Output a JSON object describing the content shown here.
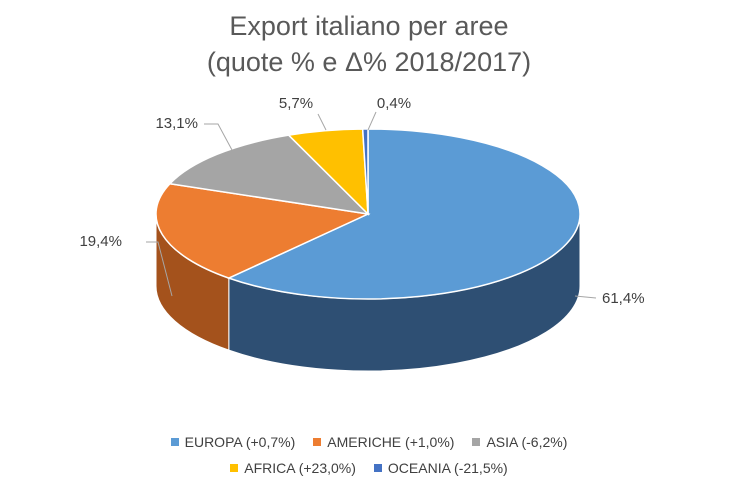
{
  "chart_data": {
    "type": "pie",
    "title": "Export italiano per aree",
    "subtitle": "(quote % e Δ% 2018/2017)",
    "three_d": true,
    "legend_placement": "bottom",
    "series": [
      {
        "label": "EUROPA (+0,7%)",
        "value": 61.4,
        "display": "61,4%",
        "color": "#5b9bd5",
        "side_color": "#2e4f73"
      },
      {
        "label": "AMERICHE (+1,0%)",
        "value": 19.4,
        "display": "19,4%",
        "color": "#ed7d31",
        "side_color": "#a4521c"
      },
      {
        "label": "ASIA (-6,2%)",
        "value": 13.1,
        "display": "13,1%",
        "color": "#a5a5a5",
        "side_color": "#6e6e6e"
      },
      {
        "label": "AFRICA (+23,0%)",
        "value": 5.7,
        "display": "5,7%",
        "color": "#ffc000",
        "side_color": "#b38600"
      },
      {
        "label": "OCEANIA (-21,5%)",
        "value": 0.4,
        "display": "0,4%",
        "color": "#4472c4",
        "side_color": "#2b4a82"
      }
    ]
  }
}
